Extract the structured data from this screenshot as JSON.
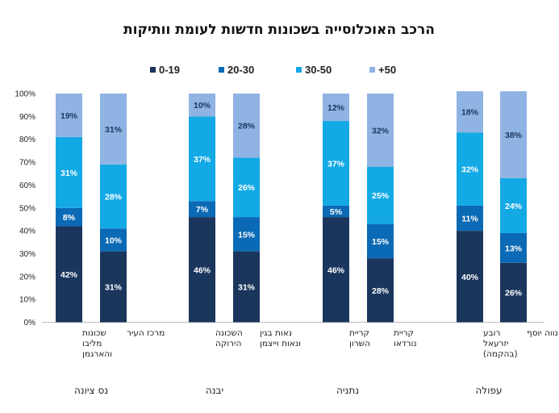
{
  "chart_data": {
    "type": "bar",
    "stacked": true,
    "title": "הרכב האוכלוסייה בשכונות חדשות לעומת וותיקות",
    "legend_position": "top",
    "y_ticks": [
      "0%",
      "10%",
      "20%",
      "30%",
      "40%",
      "50%",
      "60%",
      "70%",
      "80%",
      "90%",
      "100%"
    ],
    "ylim": [
      0,
      100
    ],
    "grid": false,
    "series": [
      {
        "name": "0-19",
        "color": "#1b365d"
      },
      {
        "name": "20-30",
        "color": "#0b6ab5"
      },
      {
        "name": "30-50",
        "color": "#12a9e5"
      },
      {
        "name": "+50",
        "color": "#8fb3e3"
      }
    ],
    "groups": [
      {
        "name": "נס ציונה",
        "bars": [
          {
            "label": [
              "שכונות",
              "מליבו",
              "והארגמן"
            ],
            "values": [
              42,
              8,
              31,
              19
            ]
          },
          {
            "label": [
              "מרכז העיר"
            ],
            "values": [
              31,
              10,
              28,
              31
            ]
          }
        ]
      },
      {
        "name": "יבנה",
        "bars": [
          {
            "label": [
              "השכונה",
              "הירוקה"
            ],
            "values": [
              46,
              7,
              37,
              10
            ]
          },
          {
            "label": [
              "נאות בגין",
              "ונאות וייצמן"
            ],
            "values": [
              31,
              15,
              26,
              28
            ]
          }
        ]
      },
      {
        "name": "נתניה",
        "bars": [
          {
            "label": [
              "קריית",
              "השרון"
            ],
            "values": [
              46,
              5,
              37,
              12
            ]
          },
          {
            "label": [
              "קריית",
              "נורדאו"
            ],
            "values": [
              28,
              15,
              25,
              32
            ]
          }
        ]
      },
      {
        "name": "עפולה",
        "bars": [
          {
            "label": [
              "רובע",
              "יזרעאל",
              "(בהקמה)"
            ],
            "values": [
              40,
              11,
              32,
              18
            ]
          },
          {
            "label": [
              "נווה יוסף"
            ],
            "values": [
              26,
              13,
              24,
              38
            ]
          }
        ]
      }
    ]
  }
}
